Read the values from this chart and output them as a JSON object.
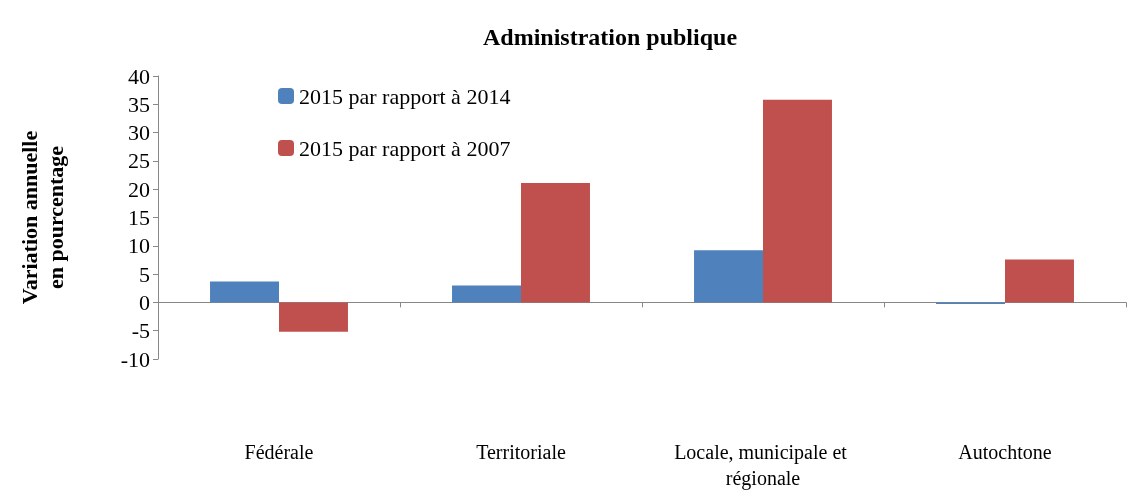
{
  "chart_data": {
    "type": "bar",
    "title": "Administration publique",
    "ylabel": "Variation annuelle en pourcentage",
    "categories": [
      "Fédérale",
      "Territoriale",
      "Locale, municipale et régionale",
      "Autochtone"
    ],
    "series": [
      {
        "name": "2015 par rapport à 2014",
        "color": "#4f81bd",
        "values": [
          3.7,
          3.0,
          9.2,
          -0.3
        ]
      },
      {
        "name": "2015 par rapport à 2007",
        "color": "#c0504d",
        "values": [
          -5.2,
          21.1,
          35.8,
          7.6
        ]
      }
    ],
    "ylim": [
      -10,
      40
    ],
    "yticks": [
      -10,
      -5,
      0,
      5,
      10,
      15,
      20,
      25,
      30,
      35,
      40
    ],
    "legend": "top left"
  }
}
